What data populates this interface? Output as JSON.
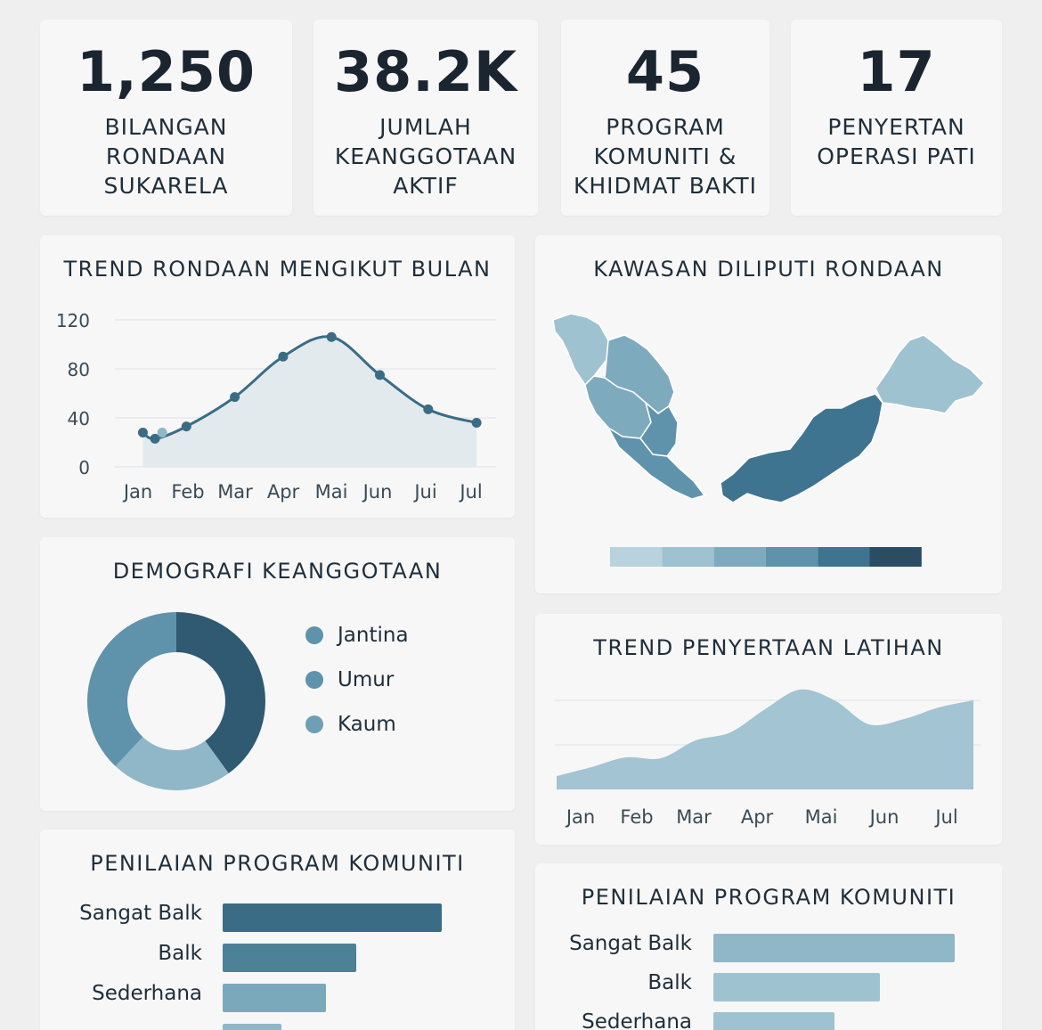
{
  "stats": [
    {
      "value": "1,250",
      "label": "BILANGAN\nRONDAAN\nSUKARELA"
    },
    {
      "value": "38.2K",
      "label": "JUMLAH\nKEANGGOTAAN\nAKTIF"
    },
    {
      "value": "45",
      "label": "PROGRAM\nKOMUNITI &\nKHIDMAT BAKTI"
    },
    {
      "value": "17",
      "label": "PENYERTAN\nOPERASI PATI"
    }
  ],
  "titles": {
    "trend_rondaan": "TREND RONDAAN MENGIKUT BULAN",
    "kawasan": "KAWASAN DILIPUTI RONDAAN",
    "demografi": "DEMOGRAFI KEANGGOTAAN",
    "latihan": "TREND PENYERTAAN LATIHAN",
    "penilaian_left": "PENILAIAN PROGRAM KOMUNITI",
    "penilaian_right": "PENILAIAN PROGRAM KOMUNITI"
  },
  "colors": {
    "dark": "#2f5a71",
    "mid": "#5e93ab",
    "light": "#8fb7c8",
    "pale": "#a9c8d5"
  },
  "map_scale_colors": [
    "#b9d3de",
    "#9fc2d1",
    "#7eaabe",
    "#5f93ab",
    "#3f7490",
    "#2a4d63"
  ],
  "chart_data": [
    {
      "type": "line",
      "title": "TREND RONDAAN MENGIKUT BULAN",
      "categories": [
        "Jan",
        "Feb",
        "Mar",
        "Apr",
        "Mai",
        "Jun",
        "Jui",
        "Jul"
      ],
      "x": [
        0.1,
        0.35,
        1.0,
        2.0,
        3.0,
        4.0,
        5.0,
        6.0,
        7.0
      ],
      "values": [
        28,
        23,
        33,
        57,
        90,
        106,
        75,
        47,
        36
      ],
      "extra_point": {
        "x": 0.5,
        "y": 28
      },
      "yticks": [
        0,
        40,
        80,
        120
      ],
      "ylim": [
        0,
        120
      ],
      "grid": true
    },
    {
      "type": "pie",
      "title": "DEMOGRAFI KEANGGOTAAN",
      "labels": [
        "Jantina",
        "Umur",
        "Kaum"
      ],
      "values": [
        40,
        38,
        22
      ],
      "colors": [
        "#2f5a71",
        "#5e93ab",
        "#8fb7c8"
      ]
    },
    {
      "type": "area",
      "title": "TREND PENYERTAAN LATIHAN",
      "categories": [
        "Jan",
        "Feb",
        "Mar",
        "Apr",
        "Mai",
        "Jun",
        "Jul"
      ],
      "x": [
        0,
        0.5,
        1.0,
        1.5,
        2.0,
        2.5,
        3.0,
        3.5,
        4.0,
        4.5,
        5.0,
        5.5,
        6.0
      ],
      "values": [
        15,
        25,
        36,
        35,
        55,
        64,
        90,
        112,
        100,
        73,
        79,
        92,
        100
      ],
      "ylim": [
        0,
        140
      ],
      "grid": true
    },
    {
      "type": "bar",
      "orientation": "horizontal",
      "title": "PENILAIAN PROGRAM KOMUNITI",
      "categories": [
        "Sangat Balk",
        "Balk",
        "Sederhana",
        ""
      ],
      "values": [
        100,
        61,
        47,
        27
      ],
      "colors": [
        "#3a6c85",
        "#4d8198",
        "#7aa9bc",
        "#8fb7c8"
      ]
    },
    {
      "type": "bar",
      "orientation": "horizontal",
      "title": "PENILAIAN PROGRAM KOMUNITI",
      "categories": [
        "Sangat Balk",
        "Balk",
        "Sederhana"
      ],
      "values": [
        100,
        69,
        50
      ],
      "colors": [
        "#8fb7c8",
        "#9fc2d1",
        "#9fc2d1"
      ]
    }
  ]
}
